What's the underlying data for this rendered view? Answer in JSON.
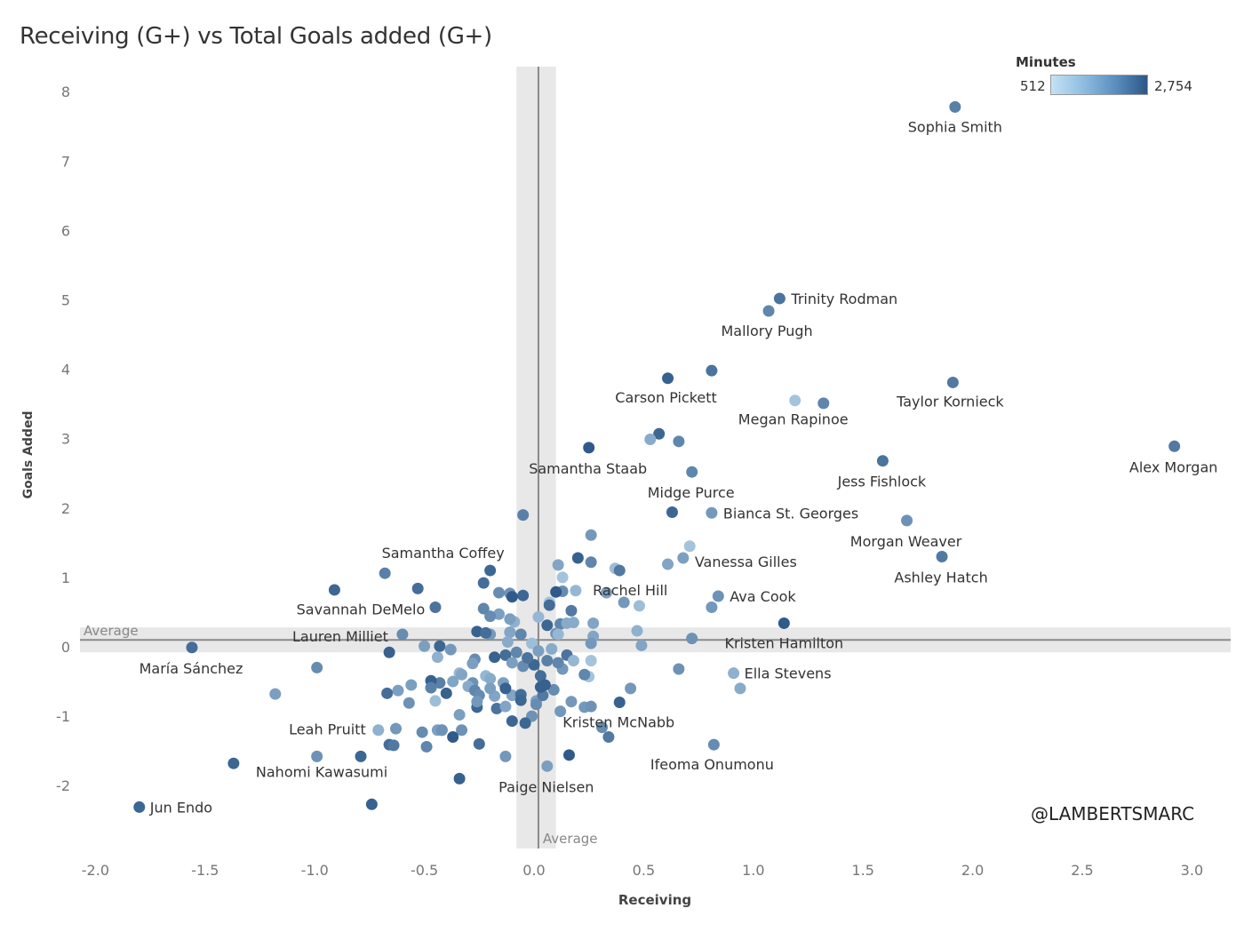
{
  "title": "Receiving (G+) vs Total Goals added (G+)",
  "legend": {
    "title": "Minutes",
    "min_label": "512",
    "max_label": "2,754",
    "min": 512,
    "max": 2754,
    "color_low": "#c5e2f5",
    "color_high": "#2c5787"
  },
  "watermark": "@LAMBERTSMARC",
  "chart_data": {
    "type": "scatter",
    "title": "Receiving (G+) vs Total Goals added (G+)",
    "xlabel": "Receiving",
    "ylabel": "Goals Added",
    "xlim": [
      -2.05,
      3.2
    ],
    "ylim": [
      -2.85,
      8.35
    ],
    "xticks": [
      -2.0,
      -1.5,
      -1.0,
      -0.5,
      0.0,
      0.5,
      1.0,
      1.5,
      2.0,
      2.5,
      3.0
    ],
    "xtick_labels": [
      "-2.0",
      "-1.5",
      "-1.0",
      "-0.5",
      "0.0",
      "0.5",
      "1.0",
      "1.5",
      "2.0",
      "2.5",
      "3.0"
    ],
    "yticks": [
      -2,
      -1,
      0,
      1,
      2,
      3,
      4,
      5,
      6,
      7,
      8
    ],
    "ytick_labels": [
      "-2",
      "-1",
      "0",
      "1",
      "2",
      "3",
      "4",
      "5",
      "6",
      "7",
      "8"
    ],
    "reference_lines": {
      "x_average": 0.02,
      "x_band": [
        -0.08,
        0.1
      ],
      "x_label": "Average",
      "y_average": 0.1,
      "y_band": [
        -0.08,
        0.28
      ],
      "y_label": "Average"
    },
    "grid": false,
    "color_encoding": "Minutes",
    "labeled_points": [
      {
        "name": "Sophia Smith",
        "x": 1.92,
        "y": 7.78,
        "minutes": 2100
      },
      {
        "name": "Trinity Rodman",
        "x": 1.12,
        "y": 5.02,
        "minutes": 2300
      },
      {
        "name": "Mallory Pugh",
        "x": 1.07,
        "y": 4.84,
        "minutes": 2000
      },
      {
        "name": "Carson Pickett",
        "x": 0.61,
        "y": 3.87,
        "minutes": 2600
      },
      {
        "name": "Taylor Kornieck",
        "x": 1.91,
        "y": 3.81,
        "minutes": 2200
      },
      {
        "name": "Megan Rapinoe",
        "x": 1.19,
        "y": 3.55,
        "minutes": 1000
      },
      {
        "name": "Alex Morgan",
        "x": 2.92,
        "y": 2.89,
        "minutes": 2200
      },
      {
        "name": "Samantha Staab",
        "x": 0.25,
        "y": 2.87,
        "minutes": 2700
      },
      {
        "name": "Jess Fishlock",
        "x": 1.59,
        "y": 2.68,
        "minutes": 2300
      },
      {
        "name": "Midge Purce",
        "x": 0.72,
        "y": 2.52,
        "minutes": 2000
      },
      {
        "name": "Bianca St. Georges",
        "x": 0.81,
        "y": 1.93,
        "minutes": 1700
      },
      {
        "name": "Morgan Weaver",
        "x": 1.7,
        "y": 1.82,
        "minutes": 1800
      },
      {
        "name": "Vanessa Gilles",
        "x": 0.68,
        "y": 1.28,
        "minutes": 1600
      },
      {
        "name": "Ashley Hatch",
        "x": 1.86,
        "y": 1.3,
        "minutes": 2200
      },
      {
        "name": "Samantha Coffey",
        "x": -0.2,
        "y": 1.1,
        "minutes": 2500
      },
      {
        "name": "Rachel Hill",
        "x": 0.39,
        "y": 1.1,
        "minutes": 2200
      },
      {
        "name": "Ava Cook",
        "x": 0.84,
        "y": 0.73,
        "minutes": 1800
      },
      {
        "name": "Savannah DeMelo",
        "x": -0.45,
        "y": 0.57,
        "minutes": 2300
      },
      {
        "name": "Kristen Hamilton",
        "x": 1.14,
        "y": 0.34,
        "minutes": 2700
      },
      {
        "name": "Lauren Milliet",
        "x": -0.6,
        "y": 0.18,
        "minutes": 1900
      },
      {
        "name": "María Sánchez",
        "x": -1.56,
        "y": -0.01,
        "minutes": 2400
      },
      {
        "name": "Ella Stevens",
        "x": 0.91,
        "y": -0.38,
        "minutes": 1300
      },
      {
        "name": "Kristen McNabb",
        "x": 0.39,
        "y": -0.8,
        "minutes": 2600
      },
      {
        "name": "Leah Pruitt",
        "x": -0.71,
        "y": -1.2,
        "minutes": 1300
      },
      {
        "name": "Ifeoma Onumonu",
        "x": 0.82,
        "y": -1.41,
        "minutes": 1900
      },
      {
        "name": "Nahomi Kawasumi",
        "x": -0.79,
        "y": -1.58,
        "minutes": 2500
      },
      {
        "name": "Paige Nielsen",
        "x": 0.06,
        "y": -1.72,
        "minutes": 1600
      },
      {
        "name": "Jun Endo",
        "x": -1.8,
        "y": -2.31,
        "minutes": 2500
      }
    ],
    "unlabeled_points": [
      [
        0.81,
        3.98,
        2300
      ],
      [
        0.66,
        2.96,
        2000
      ],
      [
        0.57,
        3.07,
        2500
      ],
      [
        0.53,
        2.99,
        1400
      ],
      [
        1.32,
        3.51,
        2000
      ],
      [
        -0.05,
        1.9,
        2100
      ],
      [
        0.63,
        1.94,
        2500
      ],
      [
        0.26,
        1.61,
        1700
      ],
      [
        0.71,
        1.45,
        1000
      ],
      [
        0.61,
        1.19,
        1500
      ],
      [
        0.37,
        1.13,
        1100
      ],
      [
        0.26,
        1.22,
        2000
      ],
      [
        0.2,
        1.28,
        2600
      ],
      [
        0.11,
        1.18,
        1500
      ],
      [
        0.13,
        1.0,
        1000
      ],
      [
        -0.23,
        0.92,
        2400
      ],
      [
        -0.68,
        1.06,
        2100
      ],
      [
        -0.53,
        0.84,
        2400
      ],
      [
        -0.91,
        0.82,
        2500
      ],
      [
        0.33,
        0.78,
        1600
      ],
      [
        0.41,
        0.64,
        1700
      ],
      [
        0.48,
        0.59,
        1100
      ],
      [
        0.81,
        0.57,
        1700
      ],
      [
        0.19,
        0.81,
        1200
      ],
      [
        0.13,
        0.8,
        1900
      ],
      [
        0.1,
        0.79,
        2700
      ],
      [
        -0.05,
        0.74,
        2500
      ],
      [
        -0.11,
        0.77,
        1800
      ],
      [
        -0.16,
        0.78,
        1900
      ],
      [
        -0.1,
        0.72,
        2700
      ],
      [
        0.07,
        0.64,
        1000
      ],
      [
        0.07,
        0.6,
        2400
      ],
      [
        0.02,
        0.43,
        1200
      ],
      [
        -0.09,
        0.36,
        1300
      ],
      [
        -0.11,
        0.4,
        1600
      ],
      [
        -0.16,
        0.47,
        1600
      ],
      [
        -0.2,
        0.44,
        1900
      ],
      [
        -0.23,
        0.55,
        2000
      ],
      [
        0.17,
        0.52,
        2200
      ],
      [
        0.27,
        0.34,
        1500
      ],
      [
        0.18,
        0.35,
        1400
      ],
      [
        0.12,
        0.33,
        2000
      ],
      [
        0.06,
        0.31,
        2500
      ],
      [
        0.47,
        0.23,
        1300
      ],
      [
        0.72,
        0.12,
        1800
      ],
      [
        0.49,
        0.02,
        1500
      ],
      [
        0.27,
        0.15,
        1500
      ],
      [
        0.26,
        0.05,
        1700
      ],
      [
        0.1,
        0.19,
        1800
      ],
      [
        -0.06,
        0.18,
        2000
      ],
      [
        -0.11,
        0.21,
        1500
      ],
      [
        -0.2,
        0.18,
        1700
      ],
      [
        -0.26,
        0.22,
        2600
      ],
      [
        -0.22,
        0.2,
        2400
      ],
      [
        -0.12,
        0.07,
        1400
      ],
      [
        -0.01,
        0.05,
        1100
      ],
      [
        0.08,
        -0.03,
        1400
      ],
      [
        0.02,
        -0.06,
        1600
      ],
      [
        -0.08,
        -0.08,
        2000
      ],
      [
        -0.13,
        -0.12,
        2400
      ],
      [
        -0.18,
        -0.15,
        2600
      ],
      [
        -0.27,
        -0.18,
        1900
      ],
      [
        -0.1,
        -0.23,
        1600
      ],
      [
        -0.05,
        -0.28,
        1900
      ],
      [
        0.15,
        -0.12,
        2300
      ],
      [
        0.06,
        -0.2,
        2100
      ],
      [
        0.18,
        -0.2,
        1200
      ],
      [
        0.26,
        -0.2,
        1000
      ],
      [
        0.13,
        -0.32,
        1700
      ],
      [
        0.25,
        -0.43,
        1000
      ],
      [
        0.23,
        -0.4,
        2000
      ],
      [
        -0.43,
        0.01,
        2500
      ],
      [
        -0.5,
        0.01,
        1600
      ],
      [
        -0.38,
        -0.04,
        1700
      ],
      [
        -0.44,
        -0.15,
        1300
      ],
      [
        -0.28,
        -0.24,
        1600
      ],
      [
        -0.34,
        -0.38,
        1200
      ],
      [
        -0.22,
        -0.42,
        1200
      ],
      [
        -0.2,
        -0.46,
        1400
      ],
      [
        -0.14,
        -0.52,
        1600
      ],
      [
        -0.28,
        -0.52,
        1800
      ],
      [
        -0.3,
        -0.57,
        1400
      ],
      [
        -0.43,
        -0.52,
        2100
      ],
      [
        -0.47,
        -0.49,
        2600
      ],
      [
        -0.47,
        -0.59,
        2100
      ],
      [
        -0.56,
        -0.55,
        1600
      ],
      [
        -0.62,
        -0.63,
        1600
      ],
      [
        -0.67,
        -0.67,
        2400
      ],
      [
        -0.4,
        -0.67,
        2600
      ],
      [
        -0.27,
        -0.63,
        2000
      ],
      [
        -0.25,
        -0.7,
        1900
      ],
      [
        -0.18,
        -0.71,
        1500
      ],
      [
        -0.1,
        -0.7,
        1500
      ],
      [
        -0.13,
        -0.6,
        2600
      ],
      [
        -0.06,
        -0.69,
        2400
      ],
      [
        -0.06,
        -0.77,
        2500
      ],
      [
        0.01,
        -0.78,
        1600
      ],
      [
        0.09,
        -0.62,
        1900
      ],
      [
        0.04,
        -0.7,
        2200
      ],
      [
        0.03,
        -0.58,
        2600
      ],
      [
        0.03,
        -0.42,
        2400
      ],
      [
        0.0,
        -0.26,
        2500
      ],
      [
        0.17,
        -0.79,
        1700
      ],
      [
        0.23,
        -0.87,
        1700
      ],
      [
        0.12,
        -0.93,
        1700
      ],
      [
        -0.01,
        -1.0,
        1800
      ],
      [
        -0.04,
        -1.1,
        2500
      ],
      [
        -0.1,
        -1.07,
        2500
      ],
      [
        -0.17,
        -0.89,
        2300
      ],
      [
        -0.13,
        -0.86,
        1500
      ],
      [
        -0.26,
        -0.87,
        2500
      ],
      [
        -0.34,
        -0.98,
        1600
      ],
      [
        -0.42,
        -1.2,
        1600
      ],
      [
        -0.44,
        -1.2,
        1600
      ],
      [
        -0.63,
        -1.18,
        1700
      ],
      [
        -0.51,
        -1.23,
        1900
      ],
      [
        -0.42,
        -1.2,
        1800
      ],
      [
        -0.33,
        -1.2,
        1800
      ],
      [
        -0.37,
        -1.3,
        2700
      ],
      [
        -0.25,
        -1.4,
        2400
      ],
      [
        -0.49,
        -1.44,
        2000
      ],
      [
        -0.66,
        -1.41,
        2400
      ],
      [
        -0.64,
        -1.42,
        2200
      ],
      [
        -0.34,
        -1.9,
        2600
      ],
      [
        -0.74,
        -2.27,
        2600
      ],
      [
        -1.37,
        -1.68,
        2500
      ],
      [
        -0.99,
        -1.58,
        1800
      ],
      [
        -1.18,
        -0.68,
        1600
      ],
      [
        -0.99,
        -0.3,
        1900
      ],
      [
        -0.66,
        -0.08,
        2600
      ],
      [
        -0.13,
        -1.58,
        1700
      ],
      [
        0.16,
        -1.56,
        2700
      ],
      [
        0.34,
        -1.3,
        2200
      ],
      [
        0.31,
        -1.16,
        1900
      ],
      [
        0.26,
        -0.86,
        1800
      ],
      [
        0.44,
        -0.6,
        1700
      ],
      [
        0.66,
        -0.32,
        1800
      ],
      [
        0.94,
        -0.6,
        1400
      ],
      [
        0.01,
        -0.83,
        1900
      ],
      [
        0.05,
        -0.55,
        2600
      ],
      [
        -0.03,
        -0.16,
        2300
      ],
      [
        0.11,
        -0.23,
        2000
      ],
      [
        -0.33,
        -0.4,
        1500
      ],
      [
        -0.37,
        -0.5,
        1500
      ],
      [
        -0.2,
        -0.6,
        1600
      ],
      [
        -0.26,
        -0.79,
        1700
      ],
      [
        -0.45,
        -0.78,
        1100
      ],
      [
        -0.57,
        -0.81,
        1800
      ],
      [
        0.11,
        0.18,
        1200
      ],
      [
        0.15,
        0.34,
        1400
      ]
    ]
  }
}
